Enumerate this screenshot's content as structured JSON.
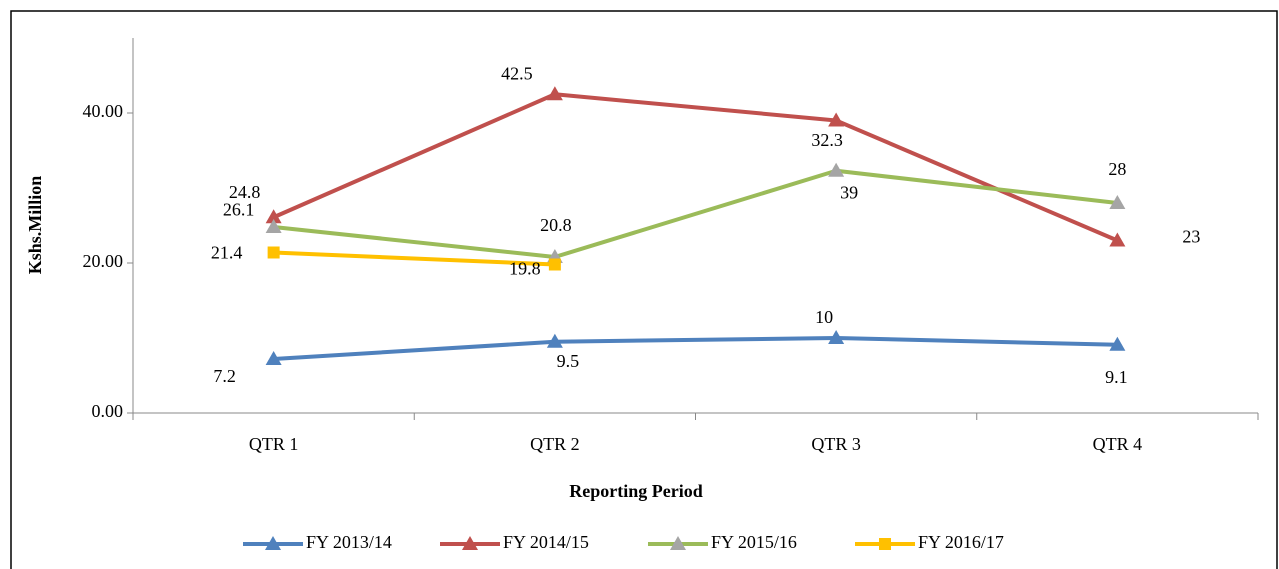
{
  "chart_data": {
    "type": "line",
    "categories": [
      "QTR 1",
      "QTR 2",
      "QTR 3",
      "QTR 4"
    ],
    "series": [
      {
        "name": "FY 2013/14",
        "color": "#4f81bd",
        "marker_color": "#4f81bd",
        "marker": "triangle",
        "values": [
          7.2,
          9.5,
          10,
          9.1
        ]
      },
      {
        "name": "FY 2014/15",
        "color": "#c0504d",
        "marker_color": "#c0504d",
        "marker": "triangle",
        "values": [
          26.1,
          42.5,
          39,
          23
        ]
      },
      {
        "name": "FY 2015/16",
        "color": "#9bbb59",
        "marker_color": "#a5a5a5",
        "marker": "triangle",
        "values": [
          24.8,
          20.8,
          32.3,
          28
        ]
      },
      {
        "name": "FY 2016/17",
        "color": "#ffc000",
        "marker_color": "#ffc000",
        "marker": "square",
        "values": [
          21.4,
          19.8,
          null,
          null
        ]
      }
    ],
    "ylim": [
      0,
      50
    ],
    "yticks": [
      {
        "value": 0,
        "label": "0.00"
      },
      {
        "value": 20,
        "label": "20.00"
      },
      {
        "value": 40,
        "label": "40.00"
      }
    ],
    "y_label": "Kshs.Million",
    "x_label": "Reporting Period",
    "legend": "bottom"
  }
}
